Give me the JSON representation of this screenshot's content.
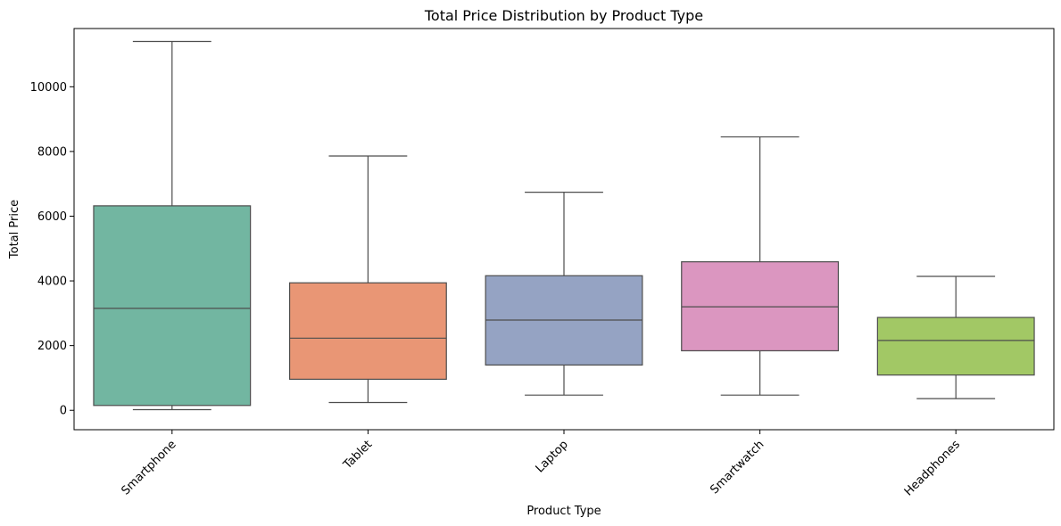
{
  "chart_data": {
    "type": "box",
    "title": "Total Price Distribution by Product Type",
    "xlabel": "Product Type",
    "ylabel": "Total Price",
    "ylim": [
      -600,
      11800
    ],
    "yticks": [
      0,
      2000,
      4000,
      6000,
      8000,
      10000
    ],
    "grid": false,
    "categories": [
      "Smartphone",
      "Tablet",
      "Laptop",
      "Smartwatch",
      "Headphones"
    ],
    "boxes": [
      {
        "category": "Smartphone",
        "whisker_low": 20,
        "q1": 150,
        "median": 3150,
        "q3": 6320,
        "whisker_high": 11400,
        "color": "#72b6a1"
      },
      {
        "category": "Tablet",
        "whisker_low": 240,
        "q1": 960,
        "median": 2230,
        "q3": 3940,
        "whisker_high": 7860,
        "color": "#e99675"
      },
      {
        "category": "Laptop",
        "whisker_low": 470,
        "q1": 1400,
        "median": 2790,
        "q3": 4160,
        "whisker_high": 6740,
        "color": "#95a3c3"
      },
      {
        "category": "Smartwatch",
        "whisker_low": 470,
        "q1": 1840,
        "median": 3200,
        "q3": 4590,
        "whisker_high": 8450,
        "color": "#db96c0"
      },
      {
        "category": "Headphones",
        "whisker_low": 360,
        "q1": 1090,
        "median": 2160,
        "q3": 2870,
        "whisker_high": 4140,
        "color": "#a2c865"
      }
    ]
  }
}
